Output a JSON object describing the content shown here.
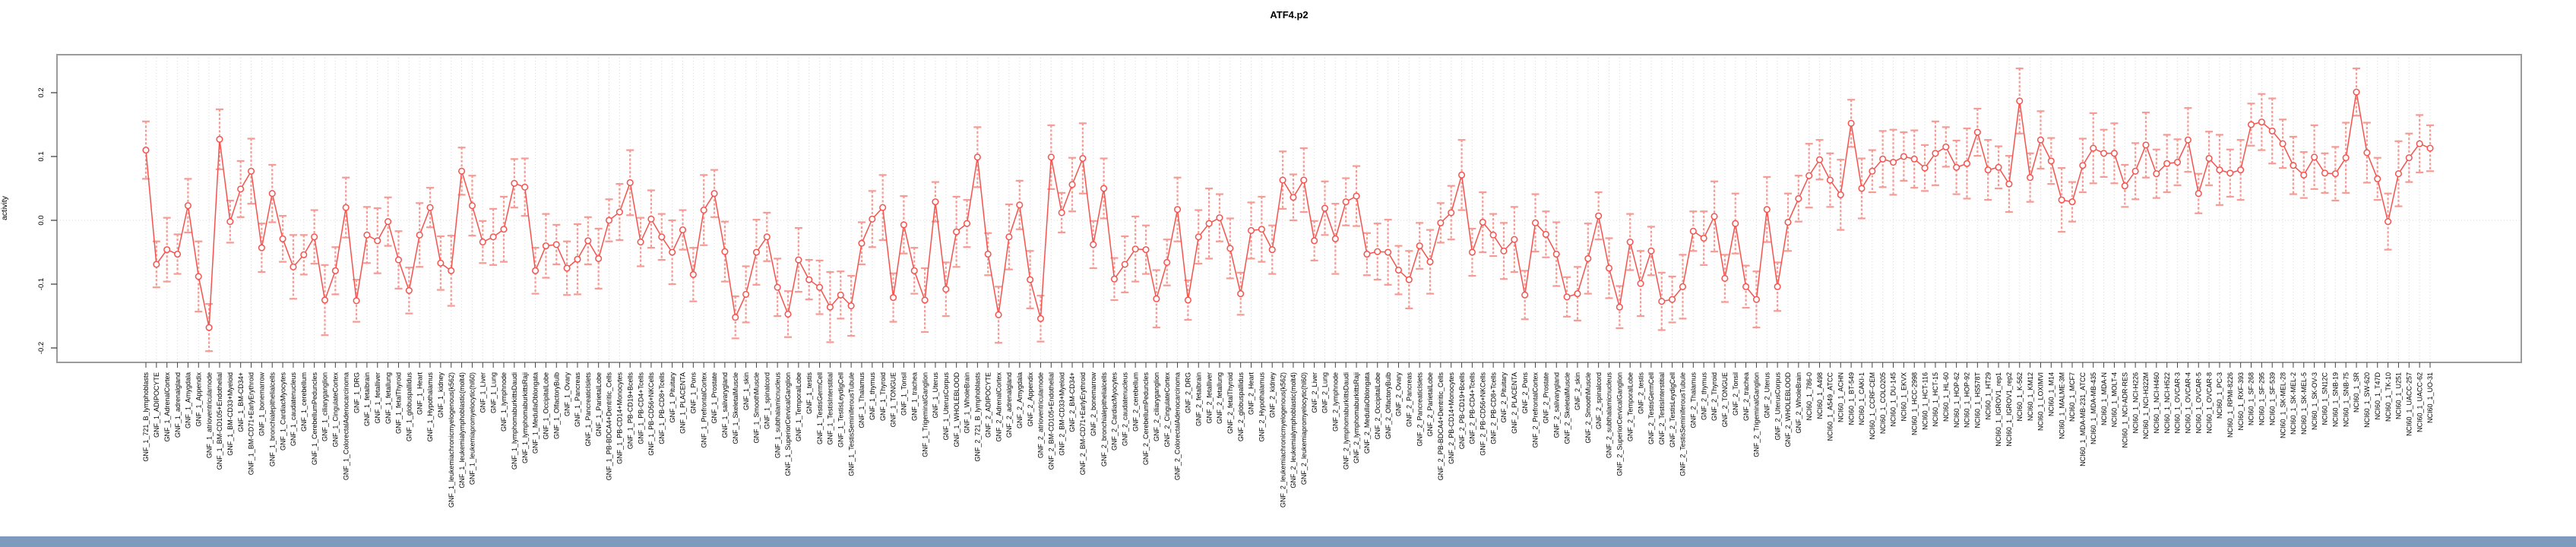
{
  "title": "ATF4.p2",
  "ylabel": "activity",
  "colors": {
    "point": "#f4534e",
    "line": "#f4534e",
    "error_bar": "#f59b94",
    "grid": "#d8d8d8",
    "plot_border": "#9b9b9b",
    "tick": "#444444",
    "bottom_bar": "#7e9bbd",
    "background": "#ffffff"
  },
  "chart_data": {
    "type": "line",
    "style": "points with error bars, open circles, vertical dotted category gridlines, dotted zero line",
    "title": "ATF4.p2",
    "xlabel": "",
    "ylabel": "activity",
    "ylim": [
      -0.223,
      0.26
    ],
    "yticks": [
      0.2,
      0.1,
      0.0,
      -0.1,
      -0.2
    ],
    "ytick_labels": [
      "0.2",
      "0.1",
      "0.0",
      "-0.1",
      "-0.2"
    ],
    "legend": "none",
    "categories": [
      "GNF_1_721_B_lymphoblasts",
      "GNF_1_ADIPOCYTE",
      "GNF_1_AdrenalCortex",
      "GNF_1_adrenalgland",
      "GNF_1_Amygdala",
      "GNF_1_Appendix",
      "GNF_1_atrioventricularnode",
      "GNF_1_BM-CD105+Endothelial",
      "GNF_1_BM-CD33+Myeloid",
      "GNF_1_BM-CD34+",
      "GNF_1_BM-CD71+EarlyErythroid",
      "GNF_1_bonemarrow",
      "GNF_1_bronchialepithelialcells",
      "GNF_1_CardiacMyocytes",
      "GNF_1_caudatenucleus",
      "GNF_1_cerebellum",
      "GNF_1_CerebellumPeduncles",
      "GNF_1_ciliaryganglion",
      "GNF_1_CingulateCortex",
      "GNF_1_ColorectalAdenocarcinoma",
      "GNF_1_DRG",
      "GNF_1_fetalbrain",
      "GNF_1_fetalliver",
      "GNF_1_fetallung",
      "GNF_1_fetalThyroid",
      "GNF_1_globuspallidus",
      "GNF_1_Heart",
      "GNF_1_Hypothalamus",
      "GNF_1_kidney",
      "GNF_1_leukemiachronicmyelogenous(k562)",
      "GNF_1_leukemialymphoblastic(molt4)",
      "GNF_1_leukemiapromyelocytic(hl60)",
      "GNF_1_Liver",
      "GNF_1_Lung",
      "GNF_1_lymphnode",
      "GNF_1_lymphomaburkittsDaudi",
      "GNF_1_lymphomaburkittsRaji",
      "GNF_1_MedullaOblongata",
      "GNF_1_OccipitalLobe",
      "GNF_1_OlfactoryBulb",
      "GNF_1_Ovary",
      "GNF_1_Pancreas",
      "GNF_1_PancreaticIslets",
      "GNF_1_ParietalLobe",
      "GNF_1_PB-BDCA4+Dentritic_Cells",
      "GNF_1_PB-CD14+Monocytes",
      "GNF_1_PB-CD19+Bcells",
      "GNF_1_PB-CD4+Tcells",
      "GNF_1_PB-CD56+NKCells",
      "GNF_1_PB-CD8+Tcells",
      "GNF_1_Pituitary",
      "GNF_1_PLACENTA",
      "GNF_1_Pons",
      "GNF_1_PrefrontalCortex",
      "GNF_1_Prostate",
      "GNF_1_salivarygland",
      "GNF_1_SkeletalMuscle",
      "GNF_1_skin",
      "GNF_1_SmoothMuscle",
      "GNF_1_spinalcord",
      "GNF_1_subthalamicnucleus",
      "GNF_1_SuperiorCervicalGanglion",
      "GNF_1_TemporalLobe",
      "GNF_1_testis",
      "GNF_1_TestisGermCell",
      "GNF_1_TestisInterstitial",
      "GNF_1_TestisLeydigCell",
      "GNF_1_TestisSeminiferousTubule",
      "GNF_1_Thalamus",
      "GNF_1_thymus",
      "GNF_1_Thyroid",
      "GNF_1_TONGUE",
      "GNF_1_Tonsil",
      "GNF_1_trachea",
      "GNF_1_TrigeminalGanglion",
      "GNF_1_Uterus",
      "GNF_1_UterusCorpus",
      "GNF_1_WHOLEBLOOD",
      "GNF_1_WholeBrain",
      "GNF_2_721_B_lymphoblasts",
      "GNF_2_ADIPOCYTE",
      "GNF_2_AdrenalCortex",
      "GNF_2_adrenalgland",
      "GNF_2_Amygdala",
      "GNF_2_Appendix",
      "GNF_2_atrioventricularnode",
      "GNF_2_BM-CD105+Endothelial",
      "GNF_2_BM-CD33+Myeloid",
      "GNF_2_BM-CD34+",
      "GNF_2_BM-CD71+EarlyErythroid",
      "GNF_2_bonemarrow",
      "GNF_2_bronchialepithelialcells",
      "GNF_2_CardiacMyocytes",
      "GNF_2_caudatenucleus",
      "GNF_2_cerebellum",
      "GNF_2_CerebellumPeduncles",
      "GNF_2_ciliaryganglion",
      "GNF_2_CingulateCortex",
      "GNF_2_ColorectalAdenocarcinoma",
      "GNF_2_DRG",
      "GNF_2_fetalbrain",
      "GNF_2_fetalliver",
      "GNF_2_fetallung",
      "GNF_2_fetalThyroid",
      "GNF_2_globuspallidus",
      "GNF_2_Heart",
      "GNF_2_Hypothalamus",
      "GNF_2_kidney",
      "GNF_2_leukemiachronicmyelogenous(k562)",
      "GNF_2_leukemialymphoblastic(molt4)",
      "GNF_2_leukemiapromyelocytic(hl60)",
      "GNF_2_Liver",
      "GNF_2_Lung",
      "GNF_2_lymphnode",
      "GNF_2_lymphomaburkittsDaudi",
      "GNF_2_lymphomaburkittsRaji",
      "GNF_2_MedullaOblongata",
      "GNF_2_OccipitalLobe",
      "GNF_2_OlfactoryBulb",
      "GNF_2_Ovary",
      "GNF_2_Pancreas",
      "GNF_2_PancreaticIslets",
      "GNF_2_ParietalLobe",
      "GNF_2_PB-BDCA4+Dentritic_Cells",
      "GNF_2_PB-CD14+Monocytes",
      "GNF_2_PB-CD19+Bcells",
      "GNF_2_PB-CD4+Tcells",
      "GNF_2_PB-CD56+NKCells",
      "GNF_2_PB-CD8+Tcells",
      "GNF_2_Pituitary",
      "GNF_2_PLACENTA",
      "GNF_2_Pons",
      "GNF_2_PrefrontalCortex",
      "GNF_2_Prostate",
      "GNF_2_salivarygland",
      "GNF_2_SkeletalMuscle",
      "GNF_2_skin",
      "GNF_2_SmoothMuscle",
      "GNF_2_spinalcord",
      "GNF_2_subthalamicnucleus",
      "GNF_2_SuperiorCervicalGanglion",
      "GNF_2_TemporalLobe",
      "GNF_2_testis",
      "GNF_2_TestisGermCell",
      "GNF_2_TestisInterstitial",
      "GNF_2_TestisLeydigCell",
      "GNF_2_TestisSeminiferousTubule",
      "GNF_2_Thalamus",
      "GNF_2_thymus",
      "GNF_2_Thyroid",
      "GNF_2_TONGUE",
      "GNF_2_Tonsil",
      "GNF_2_trachea",
      "GNF_2_TrigeminalGanglion",
      "GNF_2_Uterus",
      "GNF_2_UterusCorpus",
      "GNF_2_WHOLEBLOOD",
      "GNF_2_WholeBrain",
      "NCI60_1_786-0",
      "NCI60_1_A498",
      "NCI60_1_A549_ATCC",
      "NCI60_1_ACHN",
      "NCI60_1_BT-549",
      "NCI60_1_CAKI-1",
      "NCI60_1_CCRF-CEM",
      "NCI60_1_COLO205",
      "NCI60_1_DU-145",
      "NCI60_1_EKVX",
      "NCI60_1_HCC-2998",
      "NCI60_1_HCT-116",
      "NCI60_1_HCT-15",
      "NCI60_1_HL-60",
      "NCI60_1_HOP-62",
      "NCI60_1_HOP-92",
      "NCI60_1_HS578T",
      "NCI60_1_HT29",
      "NCI60_1_IGROV1_rep1",
      "NCI60_1_IGROV1_rep2",
      "NCI60_1_K-562",
      "NCI60_1_KM12",
      "NCI60_1_LOXIMVI",
      "NCI60_1_M14",
      "NCI60_1_MALME-3M",
      "NCI60_1_MCF7",
      "NCI60_1_MDA-MB-231_ATCC",
      "NCI60_1_MDA-MB-435",
      "NCI60_1_MDA-N",
      "NCI60_1_MOLT-4",
      "NCI60_1_NCI-ADR-RES",
      "NCI60_1_NCI-H226",
      "NCI60_1_NCI-H322M",
      "NCI60_1_NCI-H460",
      "NCI60_1_NCI-H522",
      "NCI60_1_OVCAR-3",
      "NCI60_1_OVCAR-4",
      "NCI60_1_OVCAR-5",
      "NCI60_1_OVCAR-8",
      "NCI60_1_PC-3",
      "NCI60_1_RPMI-8226",
      "NCI60_1_RXF-393",
      "NCI60_1_SF-268",
      "NCI60_1_SF-295",
      "NCI60_1_SF-539",
      "NCI60_1_SK-MEL-28",
      "NCI60_1_SK-MEL-2",
      "NCI60_1_SK-MEL-5",
      "NCI60_1_SK-OV-3",
      "NCI60_1_SN12C",
      "NCI60_1_SNB-19",
      "NCI60_1_SNB-75",
      "NCI60_1_SR",
      "NCI60_1_SW-620",
      "NCI60_1_T47D",
      "NCI60_1_TK-10",
      "NCI60_1_U251",
      "NCI60_1_UACC-257",
      "NCI60_1_UACC-62",
      "NCI60_1_UO-31"
    ],
    "values": [
      0.11,
      -0.069,
      -0.046,
      -0.053,
      0.023,
      -0.088,
      -0.168,
      0.127,
      -0.002,
      0.049,
      0.077,
      -0.043,
      0.042,
      -0.029,
      -0.073,
      -0.054,
      -0.026,
      -0.125,
      -0.079,
      0.02,
      -0.126,
      -0.023,
      -0.032,
      -0.002,
      -0.062,
      -0.11,
      -0.023,
      0.02,
      -0.067,
      -0.079,
      0.077,
      0.023,
      -0.034,
      -0.026,
      -0.014,
      0.058,
      0.052,
      -0.079,
      -0.04,
      -0.038,
      -0.075,
      -0.061,
      -0.032,
      -0.06,
      0.0,
      0.013,
      0.059,
      -0.034,
      0.002,
      -0.026,
      -0.05,
      -0.015,
      -0.085,
      0.016,
      0.042,
      -0.049,
      -0.152,
      -0.116,
      -0.05,
      -0.026,
      -0.105,
      -0.147,
      -0.062,
      -0.093,
      -0.105,
      -0.136,
      -0.117,
      -0.134,
      -0.036,
      0.002,
      0.02,
      -0.121,
      -0.007,
      -0.079,
      -0.125,
      0.029,
      -0.108,
      -0.018,
      -0.005,
      0.099,
      -0.053,
      -0.148,
      -0.026,
      0.024,
      -0.093,
      -0.154,
      0.099,
      0.012,
      0.056,
      0.097,
      -0.038,
      0.05,
      -0.092,
      -0.069,
      -0.045,
      -0.046,
      -0.123,
      -0.066,
      0.017,
      -0.125,
      -0.026,
      -0.005,
      0.004,
      -0.044,
      -0.115,
      -0.016,
      -0.014,
      -0.046,
      0.063,
      0.036,
      0.063,
      -0.032,
      0.019,
      -0.029,
      0.029,
      0.038,
      -0.053,
      -0.049,
      -0.05,
      -0.078,
      -0.093,
      -0.04,
      -0.065,
      -0.004,
      0.012,
      0.071,
      -0.05,
      -0.003,
      -0.023,
      -0.048,
      -0.03,
      -0.117,
      -0.004,
      -0.022,
      -0.053,
      -0.12,
      -0.115,
      -0.06,
      0.007,
      -0.075,
      -0.136,
      -0.034,
      -0.099,
      -0.048,
      -0.127,
      -0.124,
      -0.104,
      -0.017,
      -0.028,
      0.006,
      -0.091,
      -0.005,
      -0.104,
      -0.124,
      0.017,
      -0.104,
      -0.003,
      0.034,
      0.07,
      0.095,
      0.063,
      0.04,
      0.152,
      0.05,
      0.077,
      0.096,
      0.091,
      0.1,
      0.096,
      0.082,
      0.105,
      0.115,
      0.083,
      0.089,
      0.138,
      0.079,
      0.083,
      0.057,
      0.187,
      0.067,
      0.126,
      0.093,
      0.032,
      0.029,
      0.086,
      0.113,
      0.105,
      0.105,
      0.054,
      0.077,
      0.118,
      0.073,
      0.089,
      0.091,
      0.126,
      0.042,
      0.097,
      0.079,
      0.074,
      0.079,
      0.15,
      0.154,
      0.14,
      0.12,
      0.086,
      0.071,
      0.099,
      0.074,
      0.073,
      0.098,
      0.201,
      0.106,
      0.065,
      -0.002,
      0.073,
      0.098,
      0.12,
      0.113
    ],
    "error_bar_half_height_typical": 0.04,
    "error_cycle": [
      0.045,
      0.036,
      0.05,
      0.031,
      0.042,
      0.055,
      0.037,
      0.047,
      0.033,
      0.044,
      0.051,
      0.038
    ],
    "grid": "vertical dotted line per category; horizontal dotted line at y=0"
  }
}
